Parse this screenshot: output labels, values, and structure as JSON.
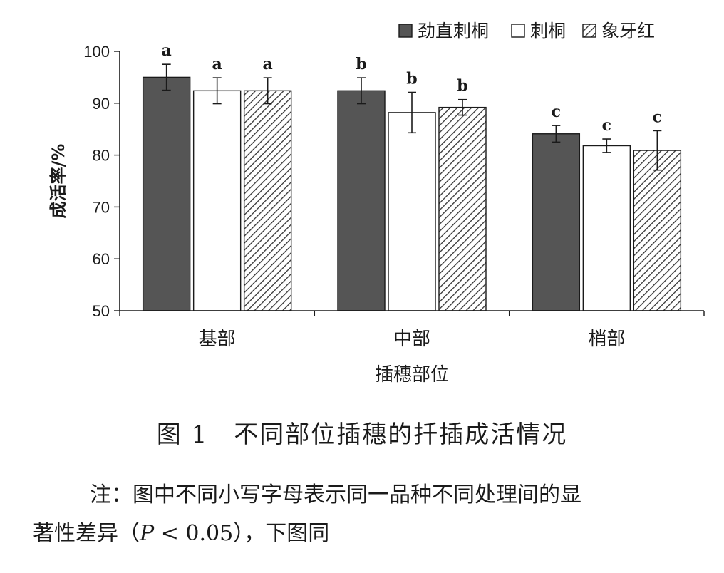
{
  "chart_data": {
    "type": "bar",
    "xlabel": "插穗部位",
    "ylabel": "成活率/%",
    "ylim": [
      50,
      100
    ],
    "yticks": [
      50,
      60,
      70,
      80,
      90,
      100
    ],
    "categories": [
      "基部",
      "中部",
      "梢部"
    ],
    "legend_position": "top-right",
    "series": [
      {
        "name": "劲直刺桐",
        "fill": "dark",
        "color": "#555555",
        "values": [
          95.0,
          92.4,
          84.1
        ],
        "errors": [
          2.5,
          2.5,
          1.6
        ],
        "letters": [
          "a",
          "b",
          "c"
        ]
      },
      {
        "name": "刺桐",
        "fill": "white",
        "color": "#ffffff",
        "values": [
          92.4,
          88.2,
          81.8
        ],
        "errors": [
          2.5,
          3.9,
          1.3
        ],
        "letters": [
          "a",
          "b",
          "c"
        ]
      },
      {
        "name": "象牙红",
        "fill": "hatch",
        "color": "#333333",
        "values": [
          92.4,
          89.2,
          80.9
        ],
        "errors": [
          2.5,
          1.5,
          3.8
        ],
        "letters": [
          "a",
          "b",
          "c"
        ]
      }
    ]
  },
  "caption": "图 1　不同部位插穗的扦插成活情况",
  "note": {
    "line1": "注：图中不同小写字母表示同一品种不同处理间的显",
    "line2_prefix": "著性差异（",
    "p_symbol": "P",
    "line2_rest": " < 0.05），下图同"
  }
}
